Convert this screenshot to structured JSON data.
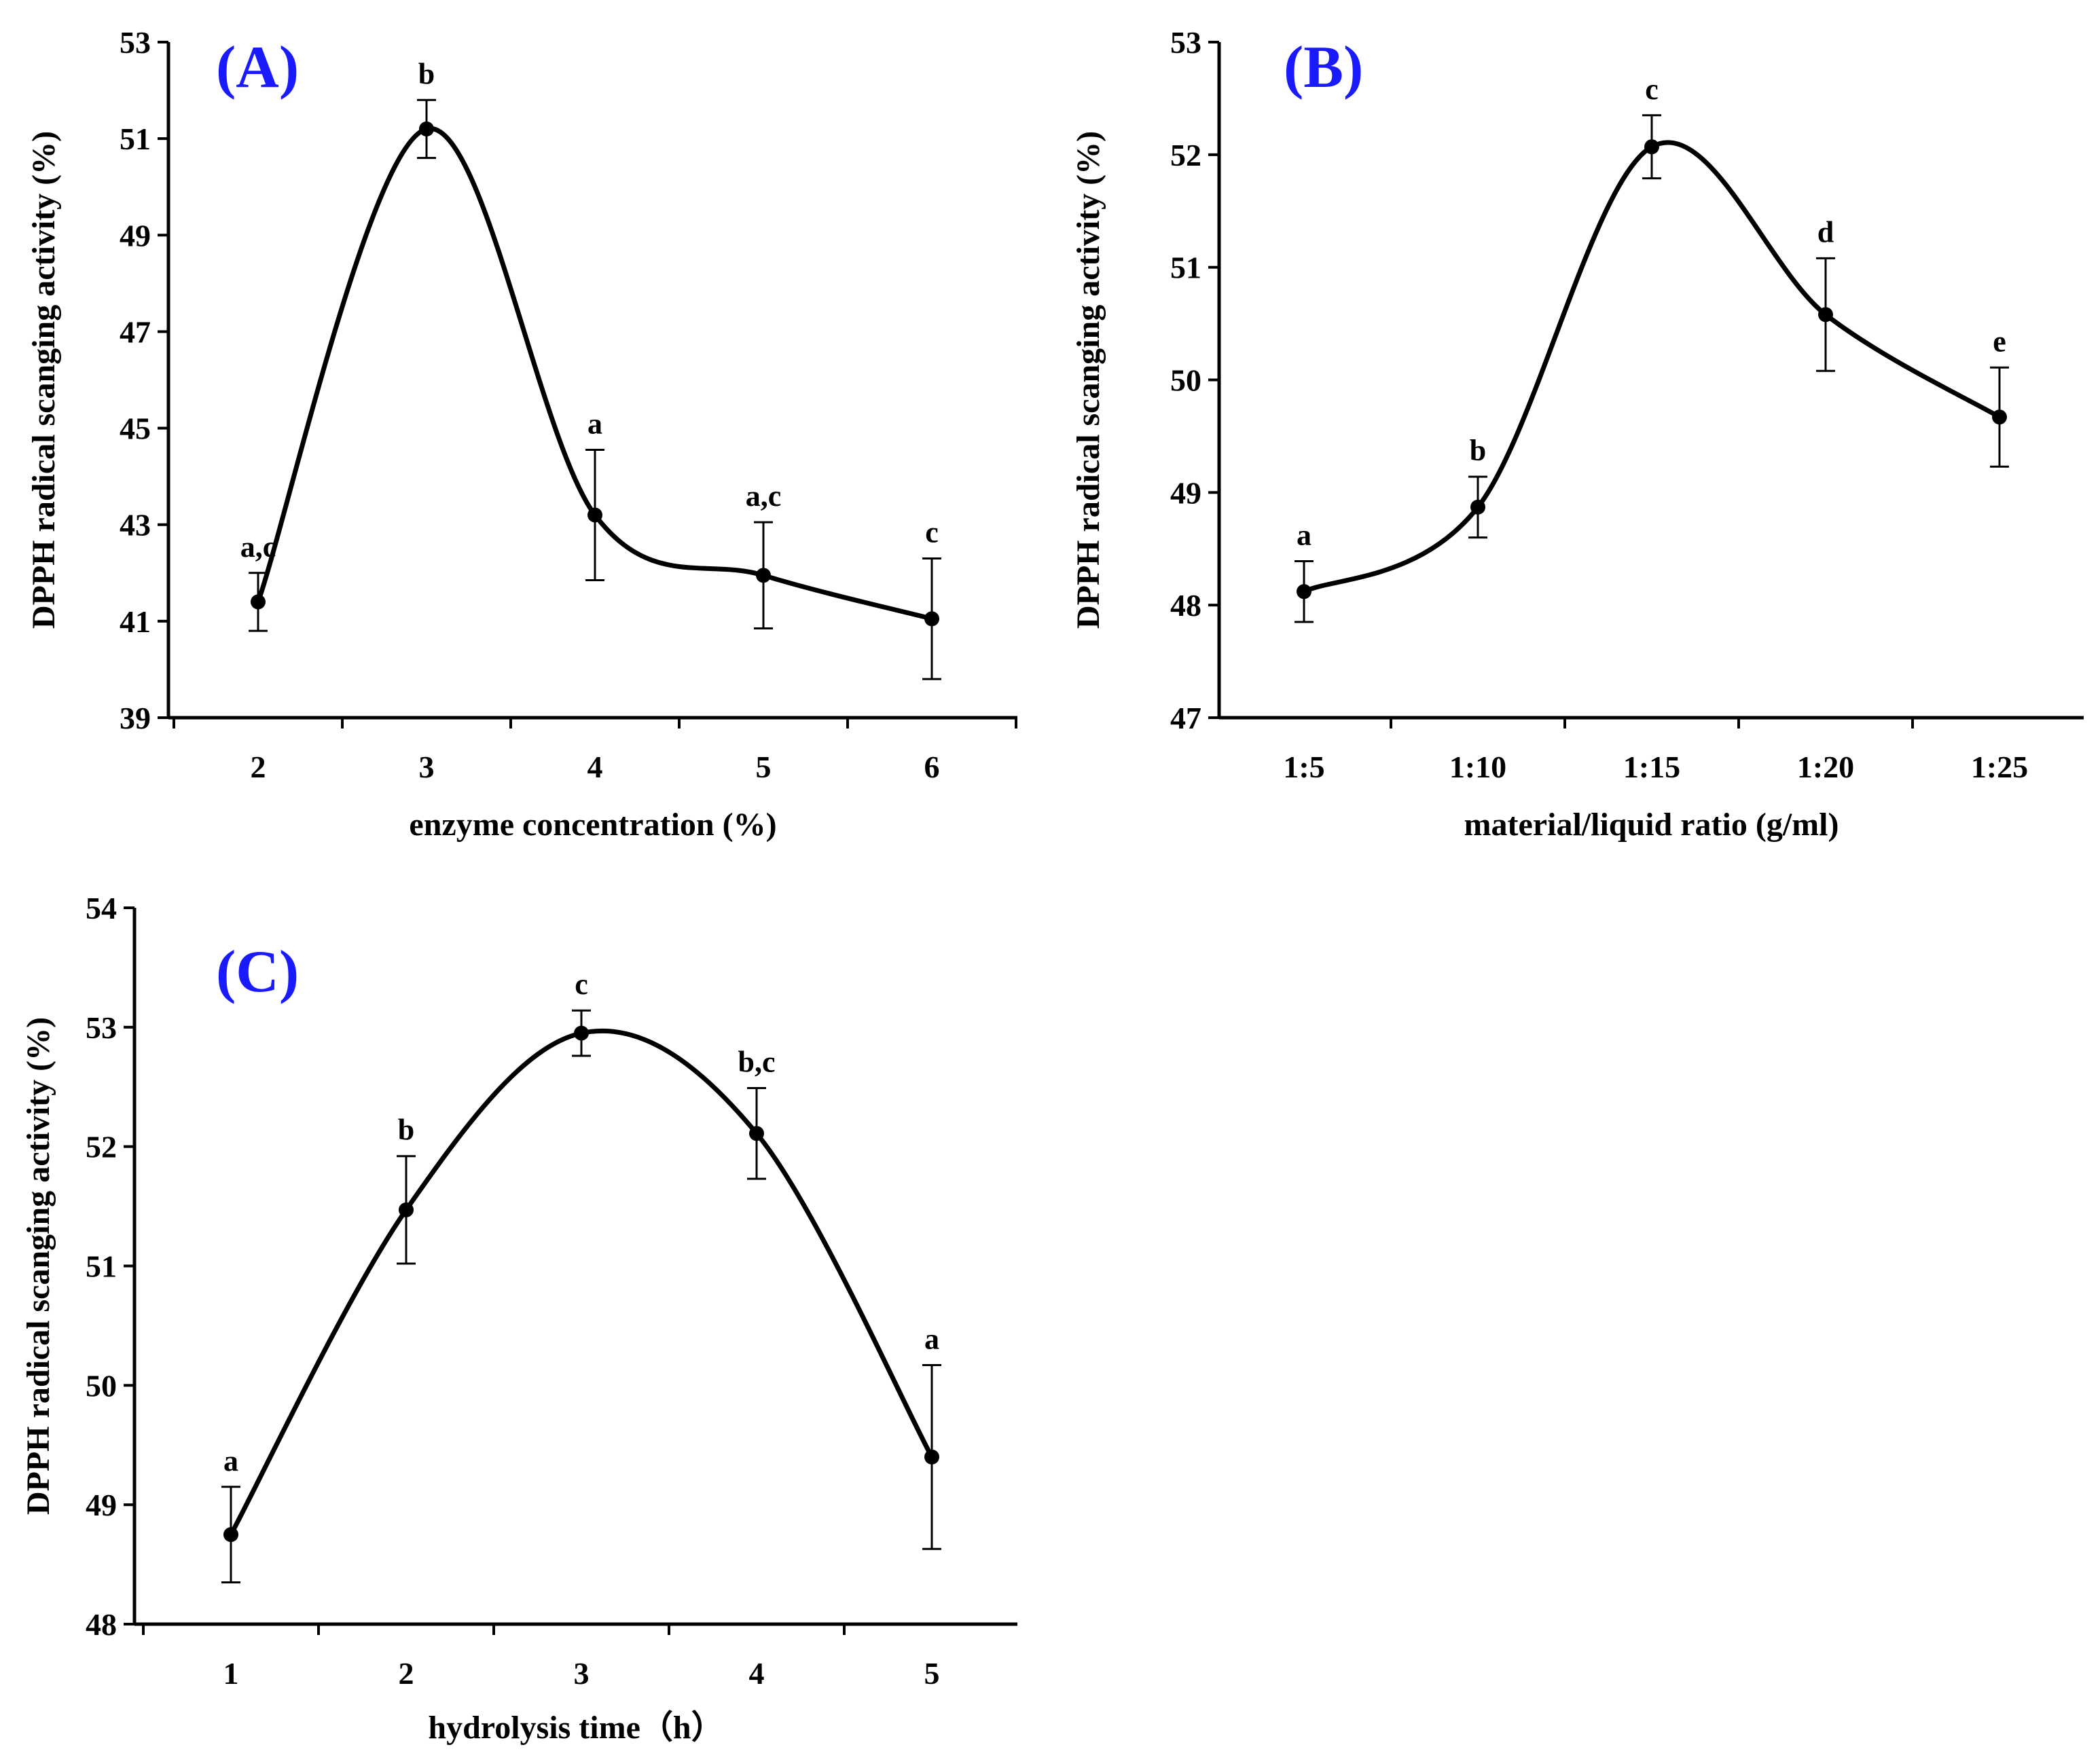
{
  "figure": {
    "y_axis_title": "DPPH radical scanging activity (%)"
  },
  "chart_data": [
    {
      "type": "line",
      "panel_label": "(A)",
      "title": "",
      "xlabel": "enzyme concentration (%)",
      "ylabel": "DPPH radical scanging activity (%)",
      "categories": [
        "2",
        "3",
        "4",
        "5",
        "6"
      ],
      "values": [
        41.4,
        51.2,
        43.2,
        41.95,
        41.05
      ],
      "errors": [
        0.6,
        0.6,
        1.35,
        1.1,
        1.25
      ],
      "significance": [
        "a,c",
        "b",
        "a",
        "a,c",
        "c"
      ],
      "ylim": [
        39,
        53
      ],
      "yticks": [
        "39",
        "41",
        "43",
        "45",
        "47",
        "49",
        "51",
        "53"
      ],
      "grid": false,
      "label_color": "#1a1aff",
      "line_color": "#000000"
    },
    {
      "type": "line",
      "panel_label": "(B)",
      "title": "",
      "xlabel": "material/liquid ratio (g/ml)",
      "ylabel": "DPPH radical scanging activity (%)",
      "categories": [
        "1:5",
        "1:10",
        "1:15",
        "1:20",
        "1:25"
      ],
      "values": [
        48.12,
        48.87,
        52.07,
        50.58,
        49.67
      ],
      "errors": [
        0.27,
        0.27,
        0.28,
        0.5,
        0.44
      ],
      "significance": [
        "a",
        "b",
        "c",
        "d",
        "e"
      ],
      "ylim": [
        47,
        53
      ],
      "yticks": [
        "47",
        "48",
        "49",
        "50",
        "51",
        "52",
        "53"
      ],
      "grid": false,
      "label_color": "#1a1aff",
      "line_color": "#000000"
    },
    {
      "type": "line",
      "panel_label": "(C)",
      "title": "",
      "xlabel": "hydrolysis time（h）",
      "ylabel": "DPPH radical scanging activity (%)",
      "categories": [
        "1",
        "2",
        "3",
        "4",
        "5"
      ],
      "values": [
        48.75,
        51.47,
        52.95,
        52.11,
        49.4
      ],
      "errors": [
        0.4,
        0.45,
        0.19,
        0.38,
        0.77
      ],
      "significance": [
        "a",
        "b",
        "c",
        "b,c",
        "a"
      ],
      "ylim": [
        48,
        54
      ],
      "yticks": [
        "48",
        "49",
        "50",
        "51",
        "52",
        "53",
        "54"
      ],
      "grid": false,
      "label_color": "#1a1aff",
      "line_color": "#000000"
    }
  ]
}
